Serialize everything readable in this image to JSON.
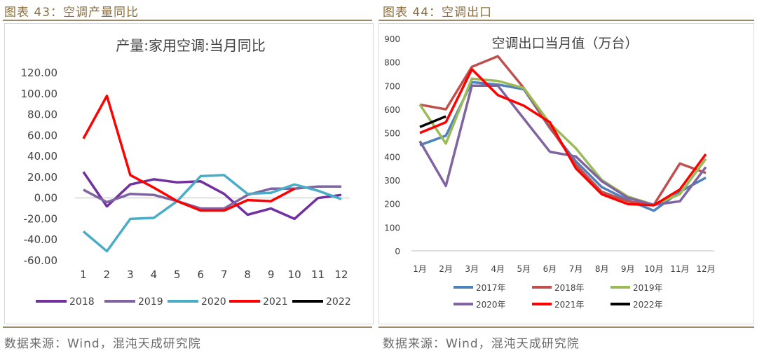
{
  "left": {
    "caption": "图表 43：空调产量同比",
    "source": "数据来源：Wind，混沌天成研究院",
    "chart_data": {
      "type": "line",
      "title": "产量:家用空调:当月同比",
      "x": [
        "1",
        "2",
        "3",
        "4",
        "5",
        "6",
        "7",
        "8",
        "9",
        "10",
        "11",
        "12"
      ],
      "ylim": [
        -60,
        120
      ],
      "yticks": [
        "120.00",
        "100.00",
        "80.00",
        "60.00",
        "40.00",
        "20.00",
        "0.00",
        "-20.00",
        "-40.00",
        "-60.00"
      ],
      "legend_position": "bottom",
      "series": [
        {
          "name": "2018",
          "color": "#7030a0",
          "values": [
            25,
            -8,
            13,
            18,
            15,
            16,
            4,
            -16,
            -10,
            -20,
            0,
            3
          ]
        },
        {
          "name": "2019",
          "color": "#8064a2",
          "values": [
            8,
            -4,
            4,
            3,
            -3,
            -10,
            -10,
            3,
            9,
            9,
            11,
            11
          ]
        },
        {
          "name": "2020",
          "color": "#4bacc6",
          "values": [
            -32,
            -51,
            -20,
            -19,
            -3,
            21,
            22,
            4,
            5,
            13,
            7,
            -1
          ]
        },
        {
          "name": "2021",
          "color": "#ff0000",
          "values": [
            57,
            98,
            22,
            10,
            -3,
            -12,
            -12,
            -2,
            -3,
            9,
            null,
            null
          ]
        },
        {
          "name": "2022",
          "color": "#000000",
          "values": [
            null,
            null,
            null,
            null,
            null,
            null,
            null,
            null,
            null,
            null,
            null,
            null
          ]
        }
      ]
    }
  },
  "right": {
    "caption": "图表 44：空调出口",
    "source": "数据来源：Wind，混沌天成研究院",
    "chart_data": {
      "type": "line",
      "title": "空调出口当月值（万台）",
      "x": [
        "1月",
        "2月",
        "3月",
        "4月",
        "5月",
        "6月",
        "7月",
        "8月",
        "9月",
        "10月",
        "11月",
        "12月"
      ],
      "ylim": [
        0,
        900
      ],
      "yticks": [
        "900",
        "800",
        "700",
        "600",
        "500",
        "400",
        "300",
        "200",
        "100",
        "0"
      ],
      "legend_position": "bottom",
      "series": [
        {
          "name": "2017年",
          "color": "#4f81bd",
          "values": [
            448,
            488,
            715,
            705,
            685,
            520,
            380,
            270,
            215,
            170,
            250,
            310
          ]
        },
        {
          "name": "2018年",
          "color": "#c0504d",
          "values": [
            620,
            600,
            780,
            825,
            690,
            525,
            365,
            250,
            210,
            195,
            370,
            330
          ]
        },
        {
          "name": "2019年",
          "color": "#9bbb59",
          "values": [
            620,
            455,
            730,
            720,
            690,
            540,
            435,
            300,
            230,
            195,
            240,
            390
          ]
        },
        {
          "name": "2020年",
          "color": "#8064a2",
          "values": [
            465,
            275,
            700,
            700,
            560,
            420,
            400,
            295,
            225,
            195,
            210,
            355
          ]
        },
        {
          "name": "2021年",
          "color": "#ff0000",
          "values": [
            500,
            545,
            770,
            660,
            615,
            545,
            350,
            240,
            198,
            193,
            260,
            410
          ]
        },
        {
          "name": "2022年",
          "color": "#000000",
          "values": [
            525,
            570,
            null,
            null,
            null,
            null,
            null,
            null,
            null,
            null,
            null,
            null
          ]
        }
      ]
    }
  }
}
